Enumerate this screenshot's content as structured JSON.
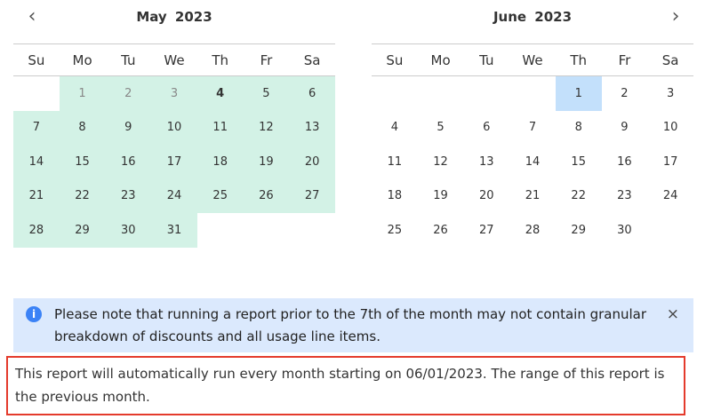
{
  "weekdays": [
    "Su",
    "Mo",
    "Tu",
    "We",
    "Th",
    "Fr",
    "Sa"
  ],
  "left": {
    "title": "May  2023",
    "offset": 1,
    "days": 31,
    "selected_from": 1,
    "muted_days": [
      1,
      2,
      3
    ],
    "bold_days": [
      4
    ]
  },
  "right": {
    "title": "June  2023",
    "offset": 4,
    "days": 30,
    "start_day": 1
  },
  "nav": {
    "prev": "‹",
    "next": "›"
  },
  "info": {
    "icon": "info-icon",
    "text": "Please note that running a report prior to the 7th of the month may not contain granular breakdown of discounts and all usage line items.",
    "close": "×"
  },
  "note": {
    "text": "This report will automatically run every month starting on 06/01/2023. The range of this report is the previous month."
  },
  "colors": {
    "range": "#d3f2e6",
    "start": "#c3e0fb",
    "info_bg": "#dbe9fd",
    "highlight_border": "#e43b2c"
  }
}
